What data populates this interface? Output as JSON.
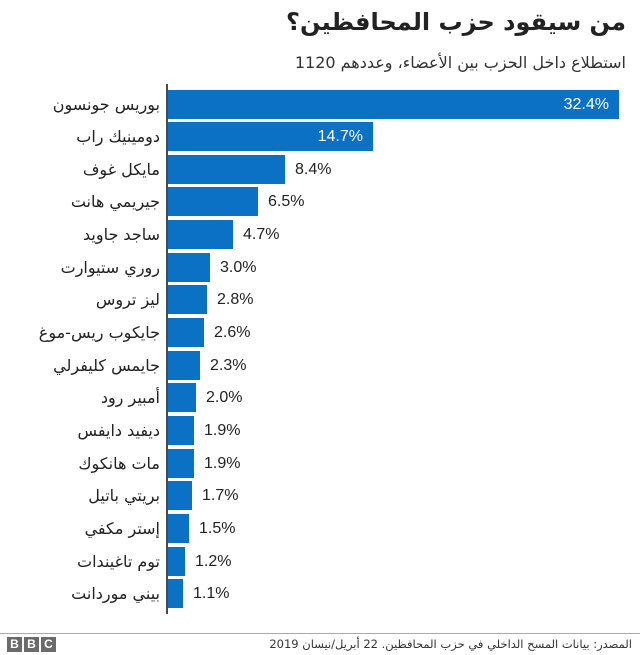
{
  "header": {
    "title": "من سيقود حزب المحافظين؟",
    "subtitle": "استطلاع داخل الحزب بين الأعضاء، وعددهم 1120"
  },
  "colors": {
    "bar": "#0a71c5",
    "axis": "#4a4a4a",
    "text": "#222222"
  },
  "chart_data": {
    "type": "bar",
    "orientation": "horizontal",
    "title": "من سيقود حزب المحافظين؟",
    "subtitle": "استطلاع داخل الحزب بين الأعضاء، وعددهم 1120",
    "xlabel": "",
    "ylabel": "",
    "unit": "%",
    "grid": false,
    "legend": null,
    "categories": [
      "بوريس جونسون",
      "دومينيك راب",
      "مايكل غوف",
      "جيريمي هانت",
      "ساجد جاويد",
      "روري ستيوارت",
      "ليز تروس",
      "جايكوب ريس-موغ",
      "جايمس كليفرلي",
      "أمبير رود",
      "ديفيد دايفس",
      "مات هانكوك",
      "بريتي باتيل",
      "إستر مكفي",
      "توم تاغيندات",
      "بيني موردانت"
    ],
    "values": [
      32.4,
      14.7,
      8.4,
      6.5,
      4.7,
      3.0,
      2.8,
      2.6,
      2.3,
      2.0,
      1.9,
      1.9,
      1.7,
      1.5,
      1.2,
      1.1
    ],
    "value_labels": [
      "32.4%",
      "14.7%",
      "8.4%",
      "6.5%",
      "4.7%",
      "3.0%",
      "2.8%",
      "2.6%",
      "2.3%",
      "2.0%",
      "1.9%",
      "1.9%",
      "1.7%",
      "1.5%",
      "1.2%",
      "1.1%"
    ],
    "xlim": [
      0,
      32.4
    ]
  },
  "footer": {
    "logo": [
      "B",
      "B",
      "C"
    ],
    "source": "المصدر: بيانات المسح الداخلي في حزب المحافظين. 22 أبريل/نيسان 2019"
  }
}
